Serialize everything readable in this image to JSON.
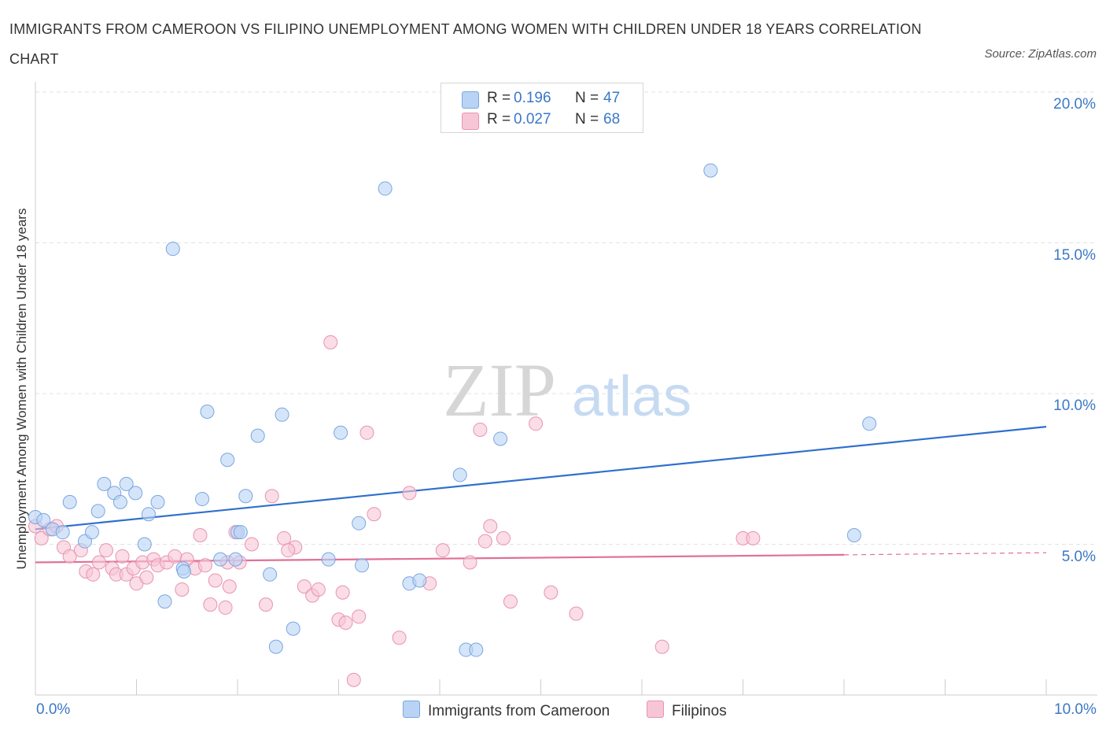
{
  "title": "IMMIGRANTS FROM CAMEROON VS FILIPINO UNEMPLOYMENT AMONG WOMEN WITH CHILDREN UNDER 18 YEARS CORRELATION CHART",
  "source": "Source: ZipAtlas.com",
  "colors": {
    "blue_fill": "#b9d3f5",
    "blue_stroke": "#7aa6e0",
    "blue_line": "#2f6fcd",
    "pink_fill": "#f7c6d6",
    "pink_stroke": "#e993b1",
    "pink_line": "#e0709a",
    "accent_text": "#3b78c6"
  },
  "legend": {
    "r_label": "R =",
    "n_label": "N =",
    "blue": {
      "r": "0.196",
      "n": "47"
    },
    "pink": {
      "r": "0.027",
      "n": "68"
    }
  },
  "watermark": {
    "zip": "ZIP",
    "atlas": "atlas"
  },
  "chart_data": {
    "type": "scatter",
    "title": "IMMIGRANTS FROM CAMEROON VS FILIPINO UNEMPLOYMENT AMONG WOMEN WITH CHILDREN UNDER 18 YEARS CORRELATION CHART",
    "xlabel": "",
    "ylabel": "Unemployment Among Women with Children Under 18 years",
    "xlim": [
      0,
      10
    ],
    "ylim": [
      0,
      20
    ],
    "x_tick_labels": [
      "0.0%",
      "10.0%"
    ],
    "y_tick_labels": [
      "5.0%",
      "10.0%",
      "15.0%",
      "20.0%"
    ],
    "y_ticks": [
      5,
      10,
      15,
      20
    ],
    "grid": true,
    "legend_position": "top-center",
    "series": [
      {
        "name": "Immigrants from Cameroon",
        "color": "#b9d3f5",
        "trend": {
          "x": [
            0,
            10
          ],
          "y": [
            5.5,
            8.9
          ]
        },
        "points": [
          [
            0.0,
            5.9
          ],
          [
            0.08,
            5.8
          ],
          [
            0.17,
            5.5
          ],
          [
            0.27,
            5.4
          ],
          [
            0.34,
            6.4
          ],
          [
            0.49,
            5.1
          ],
          [
            0.56,
            5.4
          ],
          [
            0.62,
            6.1
          ],
          [
            0.68,
            7.0
          ],
          [
            0.78,
            6.7
          ],
          [
            0.84,
            6.4
          ],
          [
            0.9,
            7.0
          ],
          [
            0.99,
            6.7
          ],
          [
            1.08,
            5.0
          ],
          [
            1.12,
            6.0
          ],
          [
            1.21,
            6.4
          ],
          [
            1.28,
            3.1
          ],
          [
            1.36,
            14.8
          ],
          [
            1.46,
            4.2
          ],
          [
            1.65,
            6.5
          ],
          [
            1.7,
            9.4
          ],
          [
            1.83,
            4.5
          ],
          [
            1.9,
            7.8
          ],
          [
            1.98,
            4.5
          ],
          [
            2.0,
            5.4
          ],
          [
            2.08,
            6.6
          ],
          [
            2.2,
            8.6
          ],
          [
            2.32,
            4.0
          ],
          [
            2.38,
            1.6
          ],
          [
            2.44,
            9.3
          ],
          [
            2.55,
            2.2
          ],
          [
            2.9,
            4.5
          ],
          [
            3.02,
            8.7
          ],
          [
            3.2,
            5.7
          ],
          [
            3.23,
            4.3
          ],
          [
            3.46,
            16.8
          ],
          [
            3.7,
            3.7
          ],
          [
            3.8,
            3.8
          ],
          [
            4.2,
            7.3
          ],
          [
            4.26,
            1.5
          ],
          [
            4.36,
            1.5
          ],
          [
            4.6,
            8.5
          ],
          [
            6.68,
            17.4
          ],
          [
            8.1,
            5.3
          ],
          [
            8.25,
            9.0
          ],
          [
            2.03,
            5.4
          ],
          [
            1.47,
            4.1
          ]
        ]
      },
      {
        "name": "Filipinos",
        "color": "#f7c6d6",
        "trend": {
          "x": [
            0,
            8
          ],
          "y": [
            4.4,
            4.65
          ]
        },
        "trend_extension": {
          "x": [
            8,
            10
          ],
          "y": [
            4.65,
            4.72
          ]
        },
        "points": [
          [
            0.0,
            5.6
          ],
          [
            0.06,
            5.2
          ],
          [
            0.14,
            5.5
          ],
          [
            0.21,
            5.6
          ],
          [
            0.28,
            4.9
          ],
          [
            0.34,
            4.6
          ],
          [
            0.45,
            4.8
          ],
          [
            0.5,
            4.1
          ],
          [
            0.57,
            4.0
          ],
          [
            0.63,
            4.4
          ],
          [
            0.7,
            4.8
          ],
          [
            0.76,
            4.2
          ],
          [
            0.8,
            4.0
          ],
          [
            0.86,
            4.6
          ],
          [
            0.9,
            4.0
          ],
          [
            0.97,
            4.2
          ],
          [
            1.0,
            3.7
          ],
          [
            1.06,
            4.4
          ],
          [
            1.1,
            3.9
          ],
          [
            1.17,
            4.5
          ],
          [
            1.21,
            4.3
          ],
          [
            1.3,
            4.4
          ],
          [
            1.38,
            4.6
          ],
          [
            1.45,
            3.5
          ],
          [
            1.5,
            4.5
          ],
          [
            1.58,
            4.2
          ],
          [
            1.63,
            5.3
          ],
          [
            1.68,
            4.3
          ],
          [
            1.73,
            3.0
          ],
          [
            1.78,
            3.8
          ],
          [
            1.88,
            2.9
          ],
          [
            1.92,
            3.6
          ],
          [
            1.98,
            5.4
          ],
          [
            2.02,
            4.4
          ],
          [
            2.14,
            5.0
          ],
          [
            2.28,
            3.0
          ],
          [
            2.34,
            6.6
          ],
          [
            2.46,
            5.2
          ],
          [
            2.57,
            4.9
          ],
          [
            2.66,
            3.6
          ],
          [
            2.74,
            3.3
          ],
          [
            2.8,
            3.5
          ],
          [
            2.92,
            11.7
          ],
          [
            3.0,
            2.5
          ],
          [
            3.04,
            3.4
          ],
          [
            3.07,
            2.4
          ],
          [
            3.15,
            0.5
          ],
          [
            3.2,
            2.6
          ],
          [
            3.28,
            8.7
          ],
          [
            3.35,
            6.0
          ],
          [
            3.6,
            1.9
          ],
          [
            3.7,
            6.7
          ],
          [
            3.9,
            3.7
          ],
          [
            4.03,
            4.8
          ],
          [
            4.3,
            4.4
          ],
          [
            4.4,
            8.8
          ],
          [
            4.45,
            5.1
          ],
          [
            4.5,
            5.6
          ],
          [
            4.7,
            3.1
          ],
          [
            4.95,
            9.0
          ],
          [
            5.1,
            3.4
          ],
          [
            5.35,
            2.7
          ],
          [
            6.2,
            1.6
          ],
          [
            7.0,
            5.2
          ],
          [
            7.1,
            5.2
          ],
          [
            1.9,
            4.4
          ],
          [
            2.5,
            4.8
          ],
          [
            4.63,
            5.2
          ]
        ]
      }
    ]
  },
  "bottom_legend": {
    "blue": "Immigrants from Cameroon",
    "pink": "Filipinos"
  }
}
